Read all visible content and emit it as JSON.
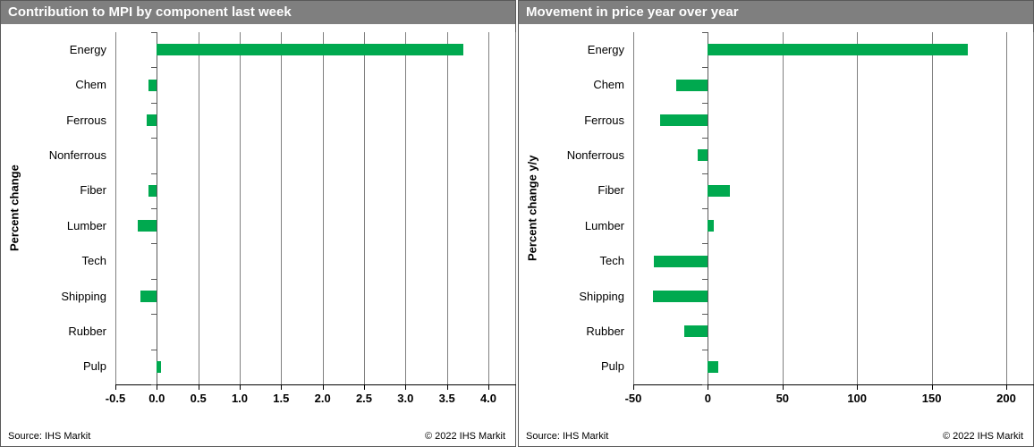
{
  "page": {
    "background": "#ffffff"
  },
  "chart_data": [
    {
      "type": "bar",
      "orientation": "horizontal",
      "title": "Contribution to MPI by component last week",
      "ylabel": "Percent change",
      "xlabel": "",
      "categories": [
        "Energy",
        "Chem",
        "Ferrous",
        "Nonferrous",
        "Fiber",
        "Lumber",
        "Tech",
        "Shipping",
        "Rubber",
        "Pulp"
      ],
      "values": [
        3.7,
        -0.1,
        -0.12,
        0,
        -0.1,
        -0.23,
        0,
        -0.2,
        0,
        0.05
      ],
      "xlim": [
        -0.5,
        4.0
      ],
      "xticks": [
        -0.5,
        0.0,
        0.5,
        1.0,
        1.5,
        2.0,
        2.5,
        3.0,
        3.5,
        4.0
      ],
      "xtick_labels": [
        "-0.5",
        "0.0",
        "0.5",
        "1.0",
        "1.5",
        "2.0",
        "2.5",
        "3.0",
        "3.5",
        "4.0"
      ],
      "grid": true,
      "legend_position": "none",
      "bar_color": "#00a94f",
      "header_bg": "#7f7f7f",
      "source": "Source: IHS Markit",
      "copyright": "© 2022  IHS Markit"
    },
    {
      "type": "bar",
      "orientation": "horizontal",
      "title": "Movement in price year over year",
      "ylabel": "Percent change y/y",
      "xlabel": "",
      "categories": [
        "Energy",
        "Chem",
        "Ferrous",
        "Nonferrous",
        "Fiber",
        "Lumber",
        "Tech",
        "Shipping",
        "Rubber",
        "Pulp"
      ],
      "values": [
        174,
        -21,
        -32,
        -7,
        15,
        4,
        -36,
        -37,
        -16,
        7
      ],
      "xlim": [
        -50,
        200
      ],
      "xticks": [
        -50,
        0,
        50,
        100,
        150,
        200
      ],
      "xtick_labels": [
        "-50",
        "0",
        "50",
        "100",
        "150",
        "200"
      ],
      "grid": true,
      "legend_position": "none",
      "bar_color": "#00a94f",
      "header_bg": "#7f7f7f",
      "source": "Source: IHS Markit",
      "copyright": "© 2022  IHS Markit"
    }
  ]
}
